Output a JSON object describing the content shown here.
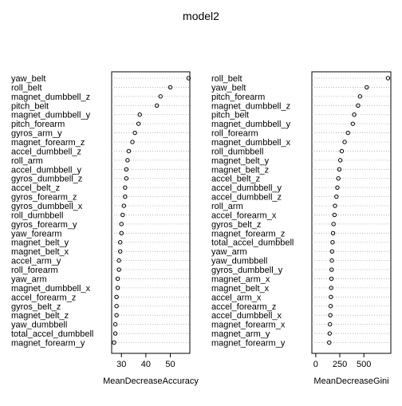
{
  "figure_title": "model2",
  "chart_data": [
    {
      "type": "scatter",
      "subtype": "dotchart",
      "xlabel": "MeanDecreaseAccuracy",
      "x_ticks": [
        30,
        40,
        50
      ],
      "xlim": [
        26,
        58
      ],
      "grid": "dotted horizontal lines per row",
      "labels": [
        "yaw_belt",
        "roll_belt",
        "magnet_dumbbell_z",
        "pitch_belt",
        "magnet_dumbbell_y",
        "pitch_forearm",
        "gyros_arm_y",
        "magnet_forearm_z",
        "accel_dumbbell_z",
        "roll_arm",
        "accel_dumbbell_y",
        "gyros_dumbbell_z",
        "accel_belt_z",
        "gyros_forearm_z",
        "gyros_dumbbell_x",
        "roll_dumbbell",
        "gyros_forearm_y",
        "yaw_forearm",
        "magnet_belt_y",
        "magnet_belt_x",
        "accel_arm_y",
        "roll_forearm",
        "yaw_arm",
        "magnet_dumbbell_x",
        "accel_forearm_z",
        "gyros_belt_z",
        "magnet_belt_z",
        "yaw_dumbbell",
        "total_accel_dumbbell",
        "magnet_forearm_y"
      ],
      "values": [
        57.5,
        50.0,
        46.0,
        44.5,
        37.5,
        37.0,
        35.5,
        34.5,
        33.0,
        32.5,
        32.0,
        32.0,
        31.5,
        31.5,
        31.0,
        30.5,
        30.0,
        30.0,
        29.5,
        29.5,
        29.0,
        29.0,
        28.5,
        28.5,
        28.0,
        28.0,
        28.0,
        27.5,
        27.5,
        27.0
      ]
    },
    {
      "type": "scatter",
      "subtype": "dotchart",
      "xlabel": "MeanDecreaseGini",
      "x_ticks": [
        0,
        250,
        500
      ],
      "xlim": [
        -40,
        780
      ],
      "grid": "dotted horizontal lines per row",
      "labels": [
        "roll_belt",
        "yaw_belt",
        "pitch_forearm",
        "magnet_dumbbell_z",
        "pitch_belt",
        "magnet_dumbbell_y",
        "roll_forearm",
        "magnet_dumbbell_x",
        "roll_dumbbell",
        "magnet_belt_y",
        "magnet_belt_z",
        "accel_belt_z",
        "accel_dumbbell_y",
        "accel_dumbbell_z",
        "roll_arm",
        "accel_forearm_x",
        "gyros_belt_z",
        "magnet_forearm_z",
        "total_accel_dumbbell",
        "yaw_arm",
        "yaw_dumbbell",
        "gyros_dumbbell_y",
        "magnet_arm_x",
        "magnet_belt_x",
        "accel_arm_x",
        "accel_forearm_z",
        "accel_dumbbell_x",
        "magnet_forearm_x",
        "magnet_arm_y",
        "magnet_forearm_y"
      ],
      "values": [
        750,
        530,
        460,
        440,
        400,
        385,
        335,
        300,
        270,
        255,
        245,
        235,
        225,
        215,
        200,
        195,
        185,
        180,
        175,
        170,
        168,
        165,
        163,
        160,
        158,
        155,
        152,
        148,
        145,
        140
      ]
    }
  ]
}
